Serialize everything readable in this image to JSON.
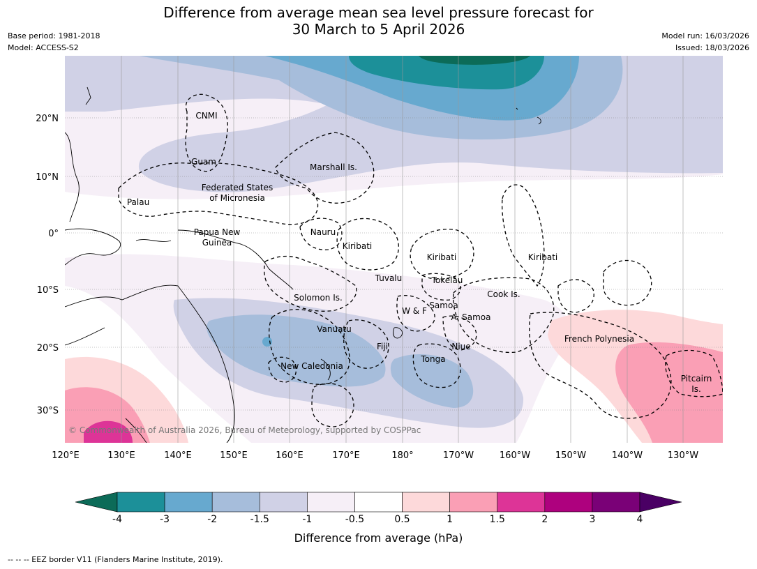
{
  "title_line1": "Difference from average mean sea level pressure forecast for",
  "title_line2": "30 March to 5 April 2026",
  "base_period": "Base period: 1981-2018",
  "model": "Model: ACCESS-S2",
  "model_run": "Model run: 16/03/2026",
  "issued": "Issued: 18/03/2026",
  "copyright": "© Commonwealth of Australia 2026, Bureau of Meteorology, supported by COSPPac",
  "lon_labels": [
    "120°E",
    "130°E",
    "140°E",
    "150°E",
    "160°E",
    "170°E",
    "180°",
    "170°W",
    "160°W",
    "150°W",
    "140°W",
    "130°W"
  ],
  "lat_labels": [
    "20°N",
    "10°N",
    "0°",
    "10°S",
    "20°S",
    "30°S"
  ],
  "regions": {
    "cnmi": "CNMI",
    "guam": "Guam",
    "marshall": "Marshall Is.",
    "fsm1": "Federated States",
    "fsm2": "of Micronesia",
    "palau": "Palau",
    "png1": "Papua New",
    "png2": "Guinea",
    "nauru": "Nauru",
    "kiribati1": "Kiribati",
    "kiribati2": "Kiribati",
    "kiribati3": "Kiribati",
    "tuvalu": "Tuvalu",
    "tokelau": "Tokelau",
    "solomon": "Solomon Is.",
    "cook": "Cook Is.",
    "samoa": "Samoa",
    "wf": "W & F",
    "asamoa": "A. Samoa",
    "vanuatu": "Vanuatu",
    "fiji": "Fiji",
    "niue": "Niue",
    "tonga": "Tonga",
    "newcal": "New Caledonia",
    "frpoly": "French Polynesia",
    "pitcairn1": "Pitcairn",
    "pitcairn2": "Is."
  },
  "colorbar": {
    "ticks": [
      "-4",
      "-3",
      "-2",
      "-1.5",
      "-1",
      "-0.5",
      "0.5",
      "1",
      "1.5",
      "2",
      "3",
      "4"
    ],
    "under_color": "#0c6b58",
    "over_color": "#4a0064",
    "colors": [
      "#1c9099",
      "#67a9cf",
      "#a6bddb",
      "#d0d1e6",
      "#f6eff7",
      "#ffffff",
      "#fdd9da",
      "#fa9fb5",
      "#dd3497",
      "#ae017e",
      "#7a0177"
    ],
    "label": "Difference from average (hPa)"
  },
  "footnote": "--  --  -- EEZ border V11 (Flanders Marine Institute, 2019)."
}
